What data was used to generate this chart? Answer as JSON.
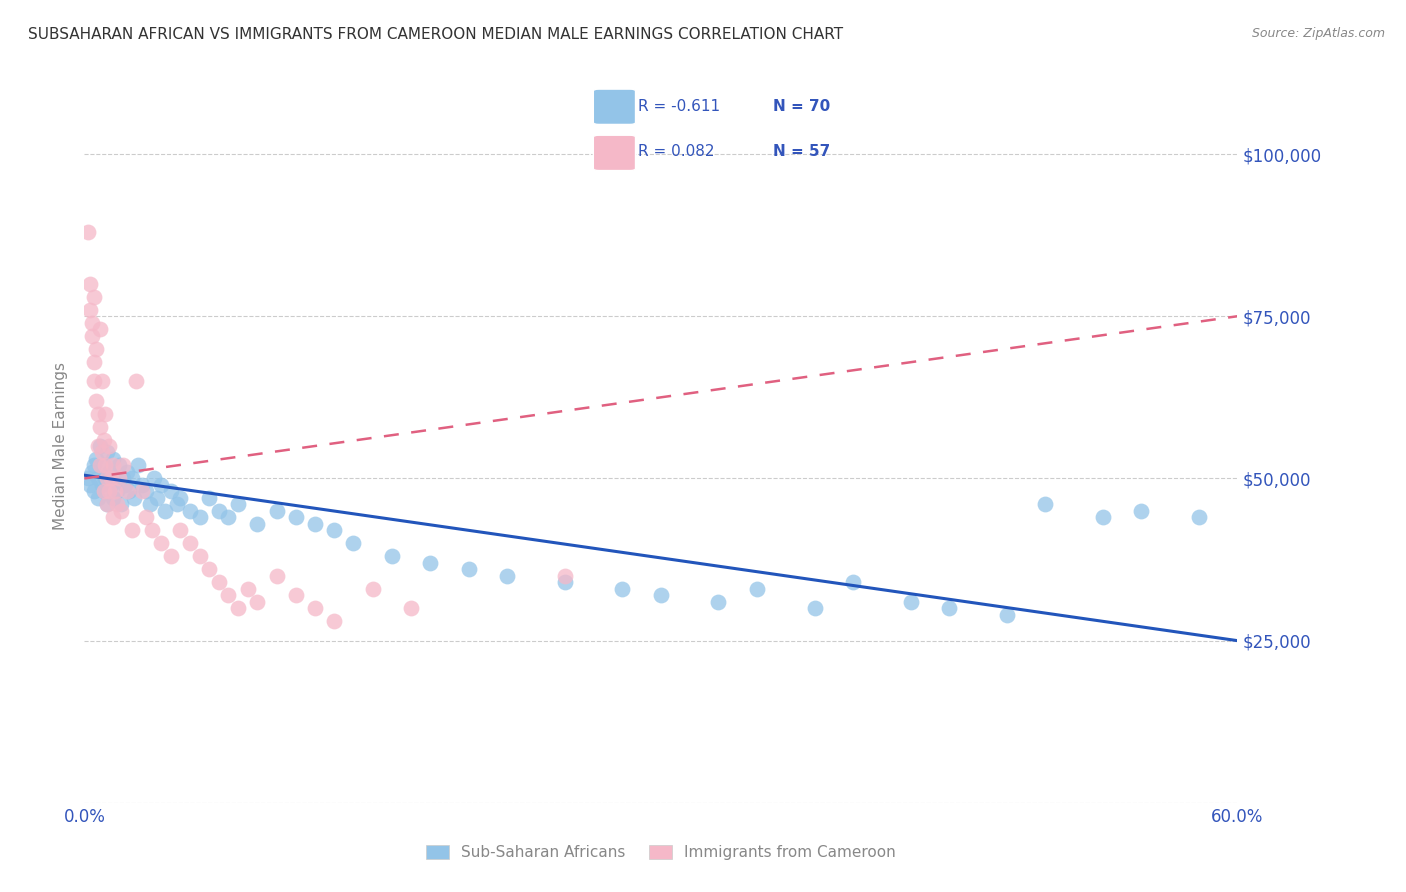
{
  "title": "SUBSAHARAN AFRICAN VS IMMIGRANTS FROM CAMEROON MEDIAN MALE EARNINGS CORRELATION CHART",
  "source": "Source: ZipAtlas.com",
  "ylabel": "Median Male Earnings",
  "xlim": [
    0.0,
    0.6
  ],
  "ylim": [
    0,
    110000
  ],
  "yticks": [
    0,
    25000,
    50000,
    75000,
    100000
  ],
  "ytick_labels": [
    "",
    "$25,000",
    "$50,000",
    "$75,000",
    "$100,000"
  ],
  "xticks": [
    0.0,
    0.1,
    0.2,
    0.3,
    0.4,
    0.5,
    0.6
  ],
  "xtick_labels": [
    "0.0%",
    "",
    "",
    "",
    "",
    "",
    "60.0%"
  ],
  "blue_color": "#93c4e8",
  "pink_color": "#f5b8c8",
  "blue_line_color": "#2255bb",
  "pink_line_color": "#e06080",
  "legend_color": "#3355bb",
  "background_color": "#ffffff",
  "grid_color": "#cccccc",
  "title_color": "#333333",
  "axis_label_color": "#888888",
  "tick_label_color": "#3355bb",
  "blue_scatter_x": [
    0.002,
    0.003,
    0.004,
    0.005,
    0.005,
    0.006,
    0.007,
    0.007,
    0.008,
    0.009,
    0.01,
    0.01,
    0.011,
    0.012,
    0.012,
    0.013,
    0.014,
    0.015,
    0.015,
    0.016,
    0.017,
    0.018,
    0.019,
    0.02,
    0.021,
    0.022,
    0.023,
    0.025,
    0.026,
    0.028,
    0.03,
    0.032,
    0.034,
    0.036,
    0.038,
    0.04,
    0.042,
    0.045,
    0.048,
    0.05,
    0.055,
    0.06,
    0.065,
    0.07,
    0.075,
    0.08,
    0.09,
    0.1,
    0.11,
    0.12,
    0.13,
    0.14,
    0.16,
    0.18,
    0.2,
    0.22,
    0.25,
    0.28,
    0.3,
    0.33,
    0.35,
    0.38,
    0.4,
    0.43,
    0.45,
    0.48,
    0.5,
    0.53,
    0.55,
    0.58
  ],
  "blue_scatter_y": [
    50000,
    49000,
    51000,
    52000,
    48000,
    53000,
    50000,
    47000,
    55000,
    49000,
    52000,
    48000,
    50000,
    54000,
    46000,
    51000,
    49000,
    53000,
    47000,
    50000,
    48000,
    52000,
    46000,
    50000,
    49000,
    51000,
    48000,
    50000,
    47000,
    52000,
    49000,
    48000,
    46000,
    50000,
    47000,
    49000,
    45000,
    48000,
    46000,
    47000,
    45000,
    44000,
    47000,
    45000,
    44000,
    46000,
    43000,
    45000,
    44000,
    43000,
    42000,
    40000,
    38000,
    37000,
    36000,
    35000,
    34000,
    33000,
    32000,
    31000,
    33000,
    30000,
    34000,
    31000,
    30000,
    29000,
    46000,
    44000,
    45000,
    44000
  ],
  "pink_scatter_x": [
    0.002,
    0.003,
    0.003,
    0.004,
    0.004,
    0.005,
    0.005,
    0.005,
    0.006,
    0.006,
    0.007,
    0.007,
    0.008,
    0.008,
    0.008,
    0.009,
    0.009,
    0.01,
    0.01,
    0.011,
    0.011,
    0.012,
    0.012,
    0.013,
    0.013,
    0.014,
    0.015,
    0.015,
    0.016,
    0.017,
    0.018,
    0.019,
    0.02,
    0.022,
    0.025,
    0.027,
    0.03,
    0.032,
    0.035,
    0.04,
    0.045,
    0.05,
    0.055,
    0.06,
    0.065,
    0.07,
    0.075,
    0.08,
    0.085,
    0.09,
    0.1,
    0.11,
    0.12,
    0.13,
    0.15,
    0.17,
    0.25
  ],
  "pink_scatter_y": [
    88000,
    80000,
    76000,
    74000,
    72000,
    68000,
    65000,
    78000,
    70000,
    62000,
    60000,
    55000,
    58000,
    52000,
    73000,
    54000,
    65000,
    56000,
    48000,
    52000,
    60000,
    50000,
    46000,
    55000,
    48000,
    50000,
    52000,
    44000,
    48000,
    46000,
    50000,
    45000,
    52000,
    48000,
    42000,
    65000,
    48000,
    44000,
    42000,
    40000,
    38000,
    42000,
    40000,
    38000,
    36000,
    34000,
    32000,
    30000,
    33000,
    31000,
    35000,
    32000,
    30000,
    28000,
    33000,
    30000,
    35000
  ]
}
